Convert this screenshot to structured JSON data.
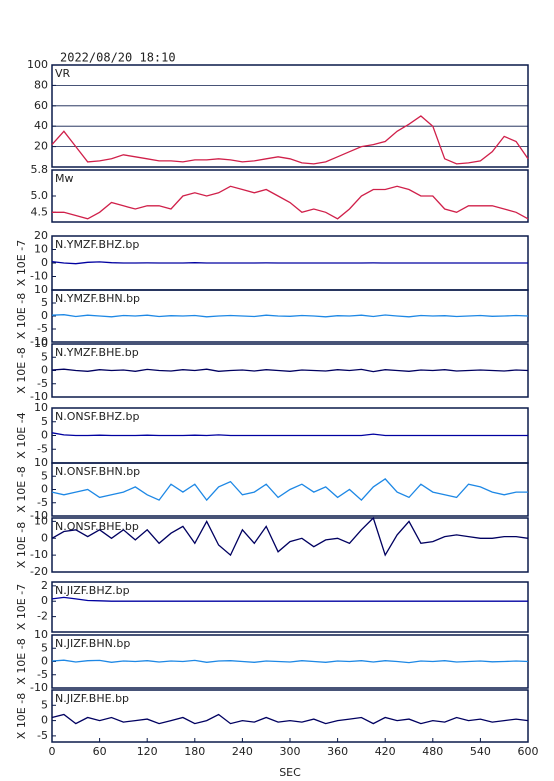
{
  "chart_data": [
    {
      "type": "line",
      "title": "2022/08/20 18:10",
      "label": "VR",
      "color": "#d0204a",
      "grid": true,
      "x": [
        0,
        15,
        30,
        45,
        60,
        75,
        90,
        105,
        120,
        135,
        150,
        165,
        180,
        195,
        210,
        225,
        240,
        255,
        270,
        285,
        300,
        315,
        330,
        345,
        360,
        375,
        390,
        405,
        420,
        435,
        450,
        465,
        480,
        495,
        510,
        525,
        540,
        555,
        570,
        585,
        600
      ],
      "values": [
        22,
        35,
        20,
        5,
        6,
        8,
        12,
        10,
        8,
        6,
        6,
        5,
        7,
        7,
        8,
        7,
        5,
        6,
        8,
        10,
        8,
        4,
        3,
        5,
        10,
        15,
        20,
        22,
        25,
        35,
        42,
        50,
        40,
        8,
        3,
        4,
        6,
        15,
        30,
        25,
        8
      ],
      "xlim": [
        0,
        600
      ],
      "ylim": [
        0,
        100
      ],
      "yticks": [
        20,
        40,
        60,
        80,
        100
      ]
    },
    {
      "type": "line",
      "label": "Mw",
      "color": "#d0204a",
      "x": [
        0,
        15,
        30,
        45,
        60,
        75,
        90,
        105,
        120,
        135,
        150,
        165,
        180,
        195,
        210,
        225,
        240,
        255,
        270,
        285,
        300,
        315,
        330,
        345,
        360,
        375,
        390,
        405,
        420,
        435,
        450,
        465,
        480,
        495,
        510,
        525,
        540,
        555,
        570,
        585,
        600
      ],
      "values": [
        4.5,
        4.5,
        4.4,
        4.3,
        4.5,
        4.8,
        4.7,
        4.6,
        4.7,
        4.7,
        4.6,
        5.0,
        5.1,
        5.0,
        5.1,
        5.3,
        5.2,
        5.1,
        5.2,
        5.0,
        4.8,
        4.5,
        4.6,
        4.5,
        4.3,
        4.6,
        5.0,
        5.2,
        5.2,
        5.3,
        5.2,
        5.0,
        5.0,
        4.6,
        4.5,
        4.7,
        4.7,
        4.7,
        4.6,
        4.5,
        4.3
      ],
      "xlim": [
        0,
        600
      ],
      "ylim": [
        4.2,
        5.8
      ],
      "yticks": [
        4.5,
        {
          "value": 5,
          "label": "5.0"
        },
        5.8
      ]
    },
    {
      "type": "line",
      "label": "N.YMZF.BHZ.bp",
      "ylabel": "X 10E -7",
      "color": "#0000a0",
      "x": [
        0,
        15,
        30,
        45,
        60,
        75,
        90,
        105,
        120,
        135,
        150,
        165,
        180,
        195,
        210,
        225,
        240,
        255,
        270,
        285,
        300,
        315,
        330,
        345,
        360,
        375,
        390,
        405,
        420,
        435,
        450,
        465,
        480,
        495,
        510,
        525,
        540,
        555,
        570,
        585,
        600
      ],
      "values": [
        1,
        0,
        -0.5,
        0.5,
        0.8,
        0.2,
        0,
        0,
        0.1,
        0,
        0,
        0,
        0.2,
        0,
        0,
        0,
        0,
        0,
        0.1,
        0,
        0,
        0,
        0,
        0,
        0,
        0,
        0,
        0.1,
        0,
        0,
        0,
        0,
        0,
        0,
        0,
        0,
        0,
        0,
        0,
        0,
        0
      ],
      "xlim": [
        0,
        600
      ],
      "ylim": [
        -20,
        20
      ],
      "yticks": [
        -10,
        0,
        10,
        20
      ]
    },
    {
      "type": "line",
      "label": "N.YMZF.BHN.bp",
      "ylabel": "X 10E -8",
      "color": "#1e88e5",
      "x": [
        0,
        15,
        30,
        45,
        60,
        75,
        90,
        105,
        120,
        135,
        150,
        165,
        180,
        195,
        210,
        225,
        240,
        255,
        270,
        285,
        300,
        315,
        330,
        345,
        360,
        375,
        390,
        405,
        420,
        435,
        450,
        465,
        480,
        495,
        510,
        525,
        540,
        555,
        570,
        585,
        600
      ],
      "values": [
        0.3,
        0.5,
        -0.2,
        0.3,
        0,
        -0.3,
        0.2,
        0,
        0.3,
        -0.2,
        0.1,
        0,
        0.2,
        -0.3,
        0,
        0.2,
        0,
        -0.2,
        0.3,
        0,
        -0.1,
        0.2,
        0,
        -0.3,
        0.1,
        0,
        0.3,
        -0.2,
        0.4,
        0,
        -0.3,
        0.2,
        0,
        0.1,
        -0.2,
        0,
        0.2,
        -0.1,
        0,
        0.2,
        0
      ],
      "xlim": [
        0,
        600
      ],
      "ylim": [
        -10,
        10
      ],
      "yticks": [
        -10,
        -5,
        0,
        5,
        10
      ]
    },
    {
      "type": "line",
      "label": "N.YMZF.BHE.bp",
      "ylabel": "X 10E -8",
      "color": "#000060",
      "x": [
        0,
        15,
        30,
        45,
        60,
        75,
        90,
        105,
        120,
        135,
        150,
        165,
        180,
        195,
        210,
        225,
        240,
        255,
        270,
        285,
        300,
        315,
        330,
        345,
        360,
        375,
        390,
        405,
        420,
        435,
        450,
        465,
        480,
        495,
        510,
        525,
        540,
        555,
        570,
        585,
        600
      ],
      "values": [
        0.2,
        0.5,
        0,
        -0.3,
        0.3,
        0,
        0.2,
        -0.3,
        0.4,
        0,
        -0.2,
        0.3,
        0,
        0.5,
        -0.3,
        0,
        0.2,
        -0.2,
        0.3,
        0,
        -0.3,
        0.2,
        0,
        -0.2,
        0.3,
        0,
        0.4,
        -0.4,
        0.3,
        0,
        -0.3,
        0.2,
        0,
        0.3,
        -0.2,
        0,
        0.2,
        0,
        -0.2,
        0.2,
        0
      ],
      "xlim": [
        0,
        600
      ],
      "ylim": [
        -10,
        10
      ],
      "yticks": [
        -10,
        -5,
        0,
        5,
        10
      ]
    },
    {
      "type": "line",
      "label": "N.ONSF.BHZ.bp",
      "ylabel": "X 10E -4",
      "color": "#0000a0",
      "x": [
        0,
        15,
        30,
        45,
        60,
        75,
        90,
        105,
        120,
        135,
        150,
        165,
        180,
        195,
        210,
        225,
        240,
        255,
        270,
        285,
        300,
        315,
        330,
        345,
        360,
        375,
        390,
        405,
        420,
        435,
        450,
        465,
        480,
        495,
        510,
        525,
        540,
        555,
        570,
        585,
        600
      ],
      "values": [
        1,
        0.2,
        0,
        0,
        0.1,
        0,
        0,
        0,
        0.1,
        0,
        0,
        0,
        0.1,
        0,
        0.2,
        0,
        0,
        0,
        0,
        0,
        0,
        0,
        0,
        0,
        0,
        0,
        0,
        0.5,
        0,
        0,
        0,
        0,
        0,
        0,
        0,
        0,
        0,
        0,
        0,
        0,
        0
      ],
      "xlim": [
        0,
        600
      ],
      "ylim": [
        -10,
        10
      ],
      "yticks": [
        -5,
        0,
        5,
        10
      ]
    },
    {
      "type": "line",
      "label": "N.ONSF.BHN.bp",
      "ylabel": "X 10E -8",
      "color": "#1e88e5",
      "x": [
        0,
        15,
        30,
        45,
        60,
        75,
        90,
        105,
        120,
        135,
        150,
        165,
        180,
        195,
        210,
        225,
        240,
        255,
        270,
        285,
        300,
        315,
        330,
        345,
        360,
        375,
        390,
        405,
        420,
        435,
        450,
        465,
        480,
        495,
        510,
        525,
        540,
        555,
        570,
        585,
        600
      ],
      "values": [
        -1,
        -2,
        -1,
        0,
        -3,
        -2,
        -1,
        1,
        -2,
        -4,
        2,
        -1,
        2,
        -4,
        1,
        3,
        -2,
        -1,
        2,
        -3,
        0,
        2,
        -1,
        1,
        -3,
        0,
        -4,
        1,
        4,
        -1,
        -3,
        2,
        -1,
        -2,
        -3,
        2,
        1,
        -1,
        -2,
        -1,
        -1
      ],
      "xlim": [
        0,
        600
      ],
      "ylim": [
        -10,
        10
      ],
      "yticks": [
        -10,
        -5,
        0,
        5,
        10
      ]
    },
    {
      "type": "line",
      "label": "N.ONSF.BHE.bp",
      "ylabel": "X 10E -8",
      "color": "#000060",
      "x": [
        0,
        15,
        30,
        45,
        60,
        75,
        90,
        105,
        120,
        135,
        150,
        165,
        180,
        195,
        210,
        225,
        240,
        255,
        270,
        285,
        300,
        315,
        330,
        345,
        360,
        375,
        390,
        405,
        420,
        435,
        450,
        465,
        480,
        495,
        510,
        525,
        540,
        555,
        570,
        585,
        600
      ],
      "values": [
        0,
        4,
        5,
        1,
        5,
        0,
        5,
        -1,
        5,
        -3,
        3,
        7,
        -3,
        10,
        -4,
        -10,
        5,
        -3,
        7,
        -8,
        -2,
        0,
        -5,
        -1,
        0,
        -3,
        5,
        12,
        -10,
        2,
        10,
        -3,
        -2,
        1,
        2,
        1,
        0,
        0,
        1,
        1,
        0
      ],
      "xlim": [
        0,
        600
      ],
      "ylim": [
        -20,
        12
      ],
      "yticks": [
        -20,
        -10,
        0,
        10
      ]
    },
    {
      "type": "line",
      "label": "N.JIZF.BHZ.bp",
      "ylabel": "X 10E -7",
      "color": "#0000a0",
      "x": [
        0,
        15,
        30,
        45,
        60,
        75,
        90,
        105,
        120,
        135,
        150,
        165,
        180,
        195,
        210,
        225,
        240,
        255,
        270,
        285,
        300,
        315,
        330,
        345,
        360,
        375,
        390,
        405,
        420,
        435,
        450,
        465,
        480,
        495,
        510,
        525,
        540,
        555,
        570,
        585,
        600
      ],
      "values": [
        0.3,
        0.5,
        0.3,
        0.1,
        0.05,
        0,
        0,
        0,
        0,
        0,
        0,
        0,
        0,
        0,
        0,
        0,
        0,
        0,
        0,
        0,
        0,
        0,
        0,
        0,
        0,
        0,
        0,
        0,
        0,
        0,
        0,
        0,
        0,
        0,
        0,
        0,
        0,
        0,
        0,
        0,
        0
      ],
      "xlim": [
        0,
        600
      ],
      "ylim": [
        -4,
        2.5
      ],
      "yticks": [
        -2,
        0,
        2
      ]
    },
    {
      "type": "line",
      "label": "N.JIZF.BHN.bp",
      "ylabel": "X 10E -8",
      "color": "#1e88e5",
      "x": [
        0,
        15,
        30,
        45,
        60,
        75,
        90,
        105,
        120,
        135,
        150,
        165,
        180,
        195,
        210,
        225,
        240,
        255,
        270,
        285,
        300,
        315,
        330,
        345,
        360,
        375,
        390,
        405,
        420,
        435,
        450,
        465,
        480,
        495,
        510,
        525,
        540,
        555,
        570,
        585,
        600
      ],
      "values": [
        0.2,
        0.5,
        -0.2,
        0.3,
        0.4,
        -0.3,
        0.2,
        0,
        0.3,
        -0.2,
        0.2,
        0,
        0.4,
        -0.3,
        0.2,
        0.3,
        0,
        -0.3,
        0.2,
        0,
        -0.2,
        0.3,
        0,
        -0.3,
        0.2,
        0,
        0.3,
        -0.2,
        0.3,
        0,
        -0.4,
        0.2,
        0,
        0.3,
        -0.2,
        0,
        0.2,
        -0.1,
        0,
        0.2,
        0
      ],
      "xlim": [
        0,
        600
      ],
      "ylim": [
        -10,
        10
      ],
      "yticks": [
        -10,
        -5,
        0,
        5,
        10
      ]
    },
    {
      "type": "line",
      "label": "N.JIZF.BHE.bp",
      "ylabel": "X 10E -8",
      "color": "#000060",
      "x": [
        0,
        15,
        30,
        45,
        60,
        75,
        90,
        105,
        120,
        135,
        150,
        165,
        180,
        195,
        210,
        225,
        240,
        255,
        270,
        285,
        300,
        315,
        330,
        345,
        360,
        375,
        390,
        405,
        420,
        435,
        450,
        465,
        480,
        495,
        510,
        525,
        540,
        555,
        570,
        585,
        600
      ],
      "values": [
        1,
        2,
        -1,
        1,
        0,
        1,
        -0.5,
        0,
        0.5,
        -1,
        0,
        1,
        -1,
        0,
        2,
        -1,
        0,
        -0.5,
        1,
        -0.5,
        0,
        -0.5,
        0.5,
        -1,
        0,
        0.5,
        1,
        -1,
        1,
        0,
        0.5,
        -1,
        0,
        -0.5,
        1,
        0,
        0.5,
        -0.5,
        0,
        0.5,
        0
      ],
      "xlim": [
        0,
        600
      ],
      "ylim": [
        -7,
        10
      ],
      "yticks": [
        -5,
        0,
        5
      ],
      "xticks": [
        0,
        60,
        120,
        180,
        240,
        300,
        360,
        420,
        480,
        540,
        600
      ],
      "xlabel": "SEC"
    }
  ]
}
